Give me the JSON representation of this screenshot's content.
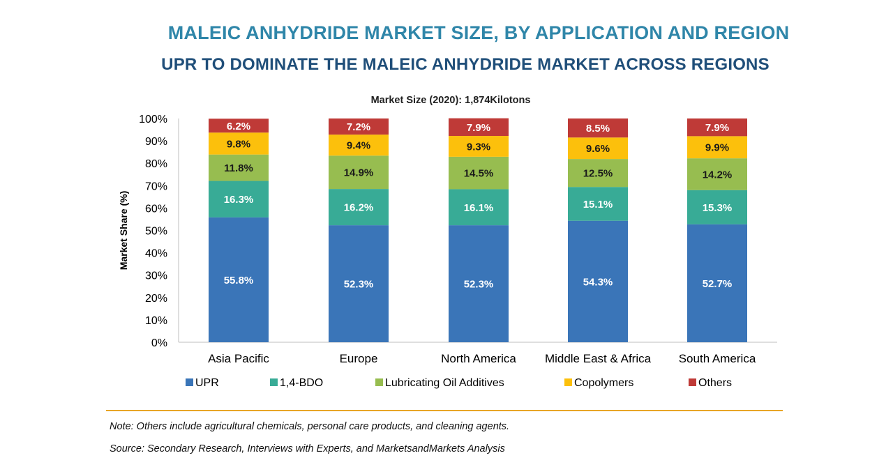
{
  "header": {
    "title": "MALEIC ANHYDRIDE MARKET SIZE, BY APPLICATION AND REGION",
    "subtitle": "UPR TO DOMINATE THE MALEIC ANHYDRIDE MARKET ACROSS REGIONS"
  },
  "footer": {
    "note": "Note: Others include agricultural chemicals, personal care products, and cleaning agents.",
    "source": "Source: Secondary Research, Interviews with Experts, and MarketsandMarkets Analysis"
  },
  "chart_data": {
    "type": "bar",
    "stacked": true,
    "annotation": "Market Size (2020): 1,874Kilotons",
    "ylabel": "Market Share (%)",
    "xlabel": "",
    "ylim": [
      0,
      100
    ],
    "yticks": [
      "0%",
      "10%",
      "20%",
      "30%",
      "40%",
      "50%",
      "60%",
      "70%",
      "80%",
      "90%",
      "100%"
    ],
    "categories": [
      "Asia Pacific",
      "Europe",
      "North America",
      "Middle East & Africa",
      "South America"
    ],
    "series": [
      {
        "name": "UPR",
        "color": "#3a75b8",
        "values": [
          55.8,
          52.3,
          52.3,
          54.3,
          52.7
        ],
        "labels": [
          "55.8%",
          "52.3%",
          "52.3%",
          "54.3%",
          "52.7%"
        ]
      },
      {
        "name": "1,4-BDO",
        "color": "#38ab96",
        "values": [
          16.3,
          16.2,
          16.1,
          15.1,
          15.3
        ],
        "labels": [
          "16.3%",
          "16.2%",
          "16.1%",
          "15.1%",
          "15.3%"
        ]
      },
      {
        "name": "Lubricating Oil Additives",
        "color": "#97bd50",
        "values": [
          11.8,
          14.9,
          14.5,
          12.5,
          14.2
        ],
        "labels": [
          "11.8%",
          "14.9%",
          "14.5%",
          "12.5%",
          "14.2%"
        ]
      },
      {
        "name": "Copolymers",
        "color": "#fcc00c",
        "values": [
          9.8,
          9.4,
          9.3,
          9.6,
          9.9
        ],
        "labels": [
          "9.8%",
          "9.4%",
          "9.3%",
          "9.6%",
          "9.9%"
        ]
      },
      {
        "name": "Others",
        "color": "#bf3a37",
        "values": [
          6.2,
          7.2,
          7.9,
          8.5,
          7.9
        ],
        "labels": [
          "6.2%",
          "7.2%",
          "7.9%",
          "8.5%",
          "7.9%"
        ]
      }
    ],
    "legend_position": "bottom",
    "grid": false
  }
}
